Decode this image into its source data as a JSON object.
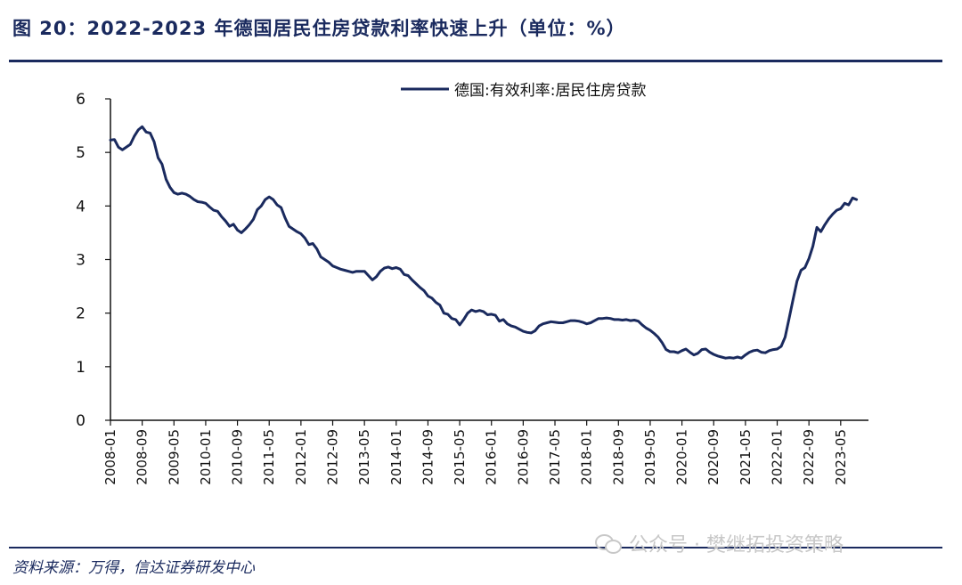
{
  "figure": {
    "title": "图 20：2022-2023 年德国居民住房贷款利率快速上升（单位：%）",
    "source": "资料来源：万得，信达证券研发中心",
    "watermark": "公众号 · 樊继拓投资策略",
    "watermark_icon": "wechat-icon"
  },
  "colors": {
    "line": "#1a2a5e",
    "text": "#1a2a5e",
    "axis": "#111111"
  },
  "chart_data": {
    "type": "line",
    "title": "",
    "xlabel": "",
    "ylabel": "",
    "ylim": [
      0,
      6
    ],
    "yticks": [
      0,
      1,
      2,
      3,
      4,
      5,
      6
    ],
    "xlim": [
      "2008-01",
      "2023-12"
    ],
    "xtick_labels": [
      "2008-01",
      "2008-09",
      "2009-05",
      "2010-01",
      "2010-09",
      "2011-05",
      "2012-01",
      "2012-09",
      "2013-05",
      "2014-01",
      "2014-09",
      "2015-05",
      "2016-01",
      "2016-09",
      "2017-05",
      "2018-01",
      "2018-09",
      "2019-05",
      "2020-01",
      "2020-09",
      "2021-05",
      "2022-01",
      "2022-09",
      "2023-05"
    ],
    "grid": false,
    "legend": "top-right",
    "series": [
      {
        "name": "德国:有效利率:居民住房贷款",
        "color": "#1a2a5e",
        "points": [
          [
            "2008-01",
            5.23
          ],
          [
            "2008-02",
            5.24
          ],
          [
            "2008-03",
            5.1
          ],
          [
            "2008-04",
            5.05
          ],
          [
            "2008-05",
            5.1
          ],
          [
            "2008-06",
            5.15
          ],
          [
            "2008-07",
            5.3
          ],
          [
            "2008-08",
            5.42
          ],
          [
            "2008-09",
            5.48
          ],
          [
            "2008-10",
            5.38
          ],
          [
            "2008-11",
            5.36
          ],
          [
            "2008-12",
            5.2
          ],
          [
            "2009-01",
            4.9
          ],
          [
            "2009-02",
            4.78
          ],
          [
            "2009-03",
            4.5
          ],
          [
            "2009-04",
            4.35
          ],
          [
            "2009-05",
            4.25
          ],
          [
            "2009-06",
            4.22
          ],
          [
            "2009-07",
            4.24
          ],
          [
            "2009-08",
            4.22
          ],
          [
            "2009-09",
            4.18
          ],
          [
            "2009-10",
            4.12
          ],
          [
            "2009-11",
            4.08
          ],
          [
            "2009-12",
            4.07
          ],
          [
            "2010-01",
            4.05
          ],
          [
            "2010-02",
            3.98
          ],
          [
            "2010-03",
            3.92
          ],
          [
            "2010-04",
            3.9
          ],
          [
            "2010-05",
            3.8
          ],
          [
            "2010-06",
            3.72
          ],
          [
            "2010-07",
            3.62
          ],
          [
            "2010-08",
            3.66
          ],
          [
            "2010-09",
            3.55
          ],
          [
            "2010-10",
            3.5
          ],
          [
            "2010-11",
            3.57
          ],
          [
            "2010-12",
            3.65
          ],
          [
            "2011-01",
            3.75
          ],
          [
            "2011-02",
            3.93
          ],
          [
            "2011-03",
            4.0
          ],
          [
            "2011-04",
            4.12
          ],
          [
            "2011-05",
            4.17
          ],
          [
            "2011-06",
            4.12
          ],
          [
            "2011-07",
            4.02
          ],
          [
            "2011-08",
            3.97
          ],
          [
            "2011-09",
            3.78
          ],
          [
            "2011-10",
            3.62
          ],
          [
            "2011-11",
            3.57
          ],
          [
            "2011-12",
            3.52
          ],
          [
            "2012-01",
            3.48
          ],
          [
            "2012-02",
            3.4
          ],
          [
            "2012-03",
            3.28
          ],
          [
            "2012-04",
            3.3
          ],
          [
            "2012-05",
            3.2
          ],
          [
            "2012-06",
            3.05
          ],
          [
            "2012-07",
            3.0
          ],
          [
            "2012-08",
            2.95
          ],
          [
            "2012-09",
            2.88
          ],
          [
            "2012-10",
            2.85
          ],
          [
            "2012-11",
            2.82
          ],
          [
            "2012-12",
            2.8
          ],
          [
            "2013-01",
            2.78
          ],
          [
            "2013-02",
            2.76
          ],
          [
            "2013-03",
            2.78
          ],
          [
            "2013-04",
            2.78
          ],
          [
            "2013-05",
            2.78
          ],
          [
            "2013-06",
            2.7
          ],
          [
            "2013-07",
            2.62
          ],
          [
            "2013-08",
            2.68
          ],
          [
            "2013-09",
            2.78
          ],
          [
            "2013-10",
            2.84
          ],
          [
            "2013-11",
            2.86
          ],
          [
            "2013-12",
            2.83
          ],
          [
            "2014-01",
            2.85
          ],
          [
            "2014-02",
            2.82
          ],
          [
            "2014-03",
            2.72
          ],
          [
            "2014-04",
            2.7
          ],
          [
            "2014-05",
            2.62
          ],
          [
            "2014-06",
            2.55
          ],
          [
            "2014-07",
            2.48
          ],
          [
            "2014-08",
            2.42
          ],
          [
            "2014-09",
            2.32
          ],
          [
            "2014-10",
            2.28
          ],
          [
            "2014-11",
            2.2
          ],
          [
            "2014-12",
            2.15
          ],
          [
            "2015-01",
            2.0
          ],
          [
            "2015-02",
            1.98
          ],
          [
            "2015-03",
            1.9
          ],
          [
            "2015-04",
            1.88
          ],
          [
            "2015-05",
            1.78
          ],
          [
            "2015-06",
            1.88
          ],
          [
            "2015-07",
            2.0
          ],
          [
            "2015-08",
            2.06
          ],
          [
            "2015-09",
            2.03
          ],
          [
            "2015-10",
            2.05
          ],
          [
            "2015-11",
            2.03
          ],
          [
            "2015-12",
            1.97
          ],
          [
            "2016-01",
            1.98
          ],
          [
            "2016-02",
            1.96
          ],
          [
            "2016-03",
            1.85
          ],
          [
            "2016-04",
            1.88
          ],
          [
            "2016-05",
            1.8
          ],
          [
            "2016-06",
            1.76
          ],
          [
            "2016-07",
            1.74
          ],
          [
            "2016-08",
            1.7
          ],
          [
            "2016-09",
            1.66
          ],
          [
            "2016-10",
            1.64
          ],
          [
            "2016-11",
            1.63
          ],
          [
            "2016-12",
            1.67
          ],
          [
            "2017-01",
            1.76
          ],
          [
            "2017-02",
            1.8
          ],
          [
            "2017-03",
            1.82
          ],
          [
            "2017-04",
            1.84
          ],
          [
            "2017-05",
            1.83
          ],
          [
            "2017-06",
            1.82
          ],
          [
            "2017-07",
            1.82
          ],
          [
            "2017-08",
            1.84
          ],
          [
            "2017-09",
            1.86
          ],
          [
            "2017-10",
            1.86
          ],
          [
            "2017-11",
            1.85
          ],
          [
            "2017-12",
            1.83
          ],
          [
            "2018-01",
            1.8
          ],
          [
            "2018-02",
            1.82
          ],
          [
            "2018-03",
            1.86
          ],
          [
            "2018-04",
            1.9
          ],
          [
            "2018-05",
            1.9
          ],
          [
            "2018-06",
            1.91
          ],
          [
            "2018-07",
            1.9
          ],
          [
            "2018-08",
            1.88
          ],
          [
            "2018-09",
            1.88
          ],
          [
            "2018-10",
            1.87
          ],
          [
            "2018-11",
            1.88
          ],
          [
            "2018-12",
            1.86
          ],
          [
            "2019-01",
            1.87
          ],
          [
            "2019-02",
            1.85
          ],
          [
            "2019-03",
            1.78
          ],
          [
            "2019-04",
            1.72
          ],
          [
            "2019-05",
            1.68
          ],
          [
            "2019-06",
            1.62
          ],
          [
            "2019-07",
            1.55
          ],
          [
            "2019-08",
            1.45
          ],
          [
            "2019-09",
            1.32
          ],
          [
            "2019-10",
            1.28
          ],
          [
            "2019-11",
            1.28
          ],
          [
            "2019-12",
            1.26
          ],
          [
            "2020-01",
            1.3
          ],
          [
            "2020-02",
            1.33
          ],
          [
            "2020-03",
            1.27
          ],
          [
            "2020-04",
            1.22
          ],
          [
            "2020-05",
            1.25
          ],
          [
            "2020-06",
            1.32
          ],
          [
            "2020-07",
            1.33
          ],
          [
            "2020-08",
            1.27
          ],
          [
            "2020-09",
            1.23
          ],
          [
            "2020-10",
            1.2
          ],
          [
            "2020-11",
            1.18
          ],
          [
            "2020-12",
            1.16
          ],
          [
            "2021-01",
            1.17
          ],
          [
            "2021-02",
            1.16
          ],
          [
            "2021-03",
            1.18
          ],
          [
            "2021-04",
            1.16
          ],
          [
            "2021-05",
            1.22
          ],
          [
            "2021-06",
            1.27
          ],
          [
            "2021-07",
            1.3
          ],
          [
            "2021-08",
            1.31
          ],
          [
            "2021-09",
            1.27
          ],
          [
            "2021-10",
            1.26
          ],
          [
            "2021-11",
            1.3
          ],
          [
            "2021-12",
            1.32
          ],
          [
            "2022-01",
            1.33
          ],
          [
            "2022-02",
            1.38
          ],
          [
            "2022-03",
            1.55
          ],
          [
            "2022-04",
            1.9
          ],
          [
            "2022-05",
            2.25
          ],
          [
            "2022-06",
            2.6
          ],
          [
            "2022-07",
            2.8
          ],
          [
            "2022-08",
            2.85
          ],
          [
            "2022-09",
            3.02
          ],
          [
            "2022-10",
            3.25
          ],
          [
            "2022-11",
            3.6
          ],
          [
            "2022-12",
            3.52
          ],
          [
            "2023-01",
            3.65
          ],
          [
            "2023-02",
            3.76
          ],
          [
            "2023-03",
            3.85
          ],
          [
            "2023-04",
            3.92
          ],
          [
            "2023-05",
            3.95
          ],
          [
            "2023-06",
            4.05
          ],
          [
            "2023-07",
            4.02
          ],
          [
            "2023-08",
            4.15
          ],
          [
            "2023-09",
            4.12
          ]
        ]
      }
    ]
  }
}
